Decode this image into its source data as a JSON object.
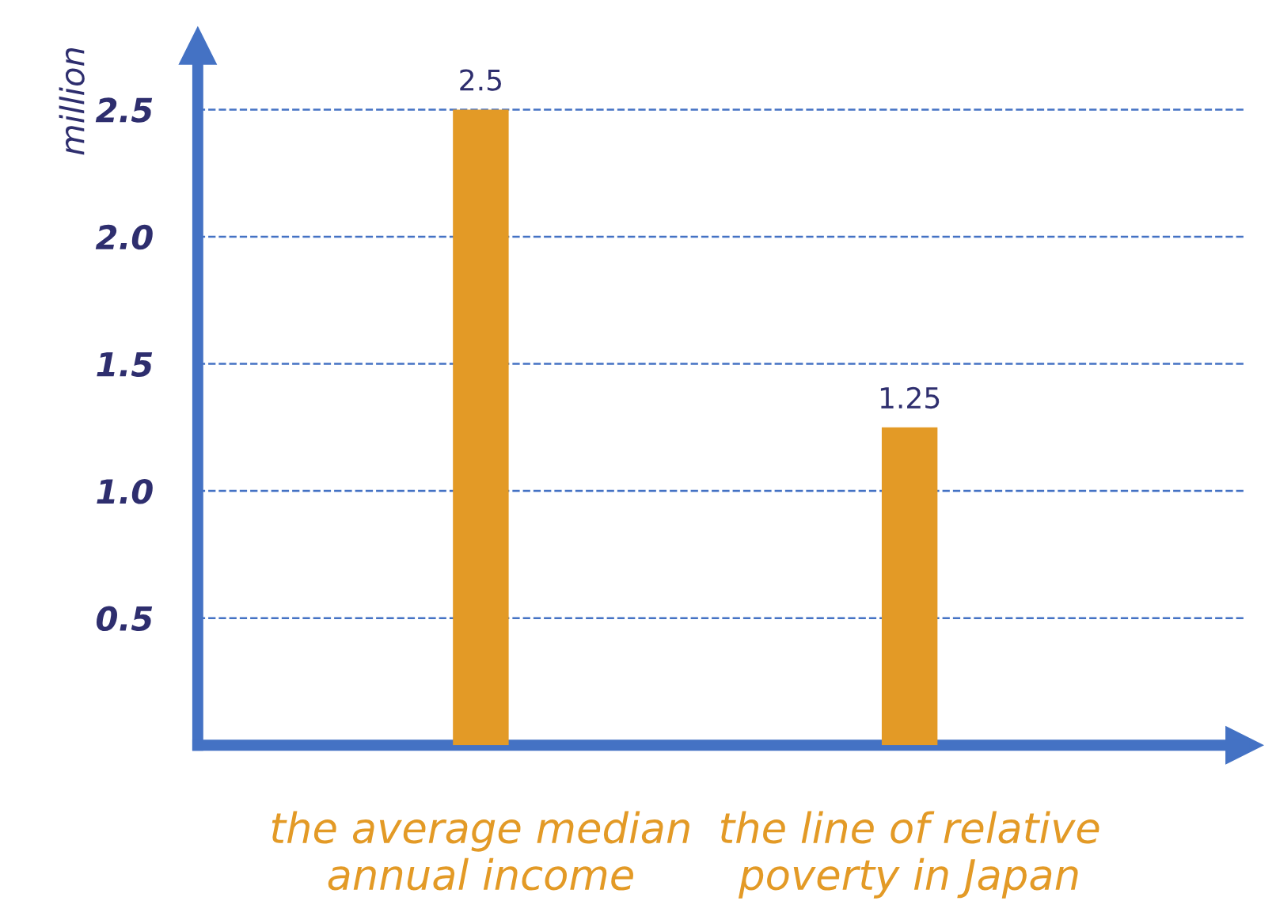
{
  "chart_data": {
    "type": "bar",
    "ylabel": "million",
    "categories": [
      "the average median\nannual income",
      "the line of relative\npoverty in Japan"
    ],
    "values": [
      2.5,
      1.25
    ],
    "color": "#e39a26",
    "ylim": [
      0,
      2.75
    ],
    "yticks": [
      0.5,
      {
        "value": 1,
        "label": "1.0"
      },
      1.5,
      {
        "value": 2,
        "label": "2.0"
      },
      2.5
    ],
    "grid": "y",
    "data_labels": true
  }
}
